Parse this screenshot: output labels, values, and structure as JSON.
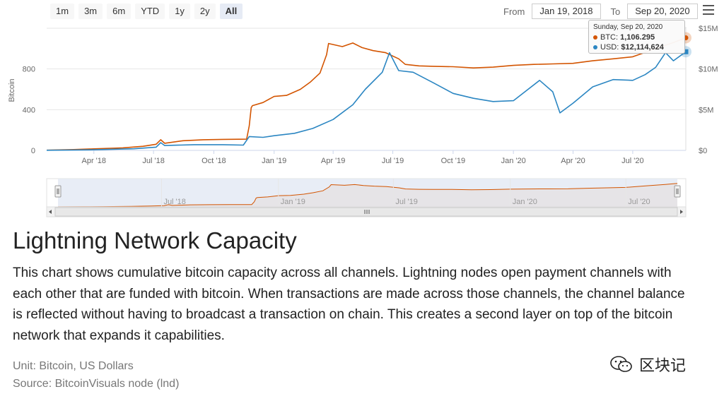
{
  "toolbar": {
    "ranges": [
      "1m",
      "3m",
      "6m",
      "YTD",
      "1y",
      "2y",
      "All"
    ],
    "active_range": "All",
    "from_label": "From",
    "from_value": "Jan 19, 2018",
    "to_label": "To",
    "to_value": "Sep 20, 2020"
  },
  "tooltip": {
    "date": "Sunday, Sep 20, 2020",
    "btc_label": "BTC:",
    "btc_value": "1,106.295",
    "usd_label": "USD:",
    "usd_value": "$12,114,624"
  },
  "colors": {
    "btc": "#d35400",
    "usd": "#2b86c2",
    "navigator_fill": "#e6ebf5"
  },
  "chart_data": {
    "type": "line",
    "x_ticks": [
      "Apr '18",
      "Jul '18",
      "Oct '18",
      "Jan '19",
      "Apr '19",
      "Jul '19",
      "Oct '19",
      "Jan '20",
      "Apr '20",
      "Jul '20"
    ],
    "y_left": {
      "label": "Bitcoin",
      "ticks": [
        "0",
        "400",
        "800"
      ],
      "range": [
        0,
        1200
      ]
    },
    "y_right": {
      "ticks": [
        "$0",
        "$5M",
        "$10M",
        "$15M"
      ],
      "range": [
        0,
        15000000
      ]
    },
    "series": [
      {
        "name": "BTC",
        "axis": "left",
        "color": "#d35400",
        "points": [
          [
            "2018-01-19",
            2
          ],
          [
            "2018-03-01",
            8
          ],
          [
            "2018-04-01",
            15
          ],
          [
            "2018-05-15",
            25
          ],
          [
            "2018-06-15",
            40
          ],
          [
            "2018-07-05",
            60
          ],
          [
            "2018-07-12",
            105
          ],
          [
            "2018-07-18",
            70
          ],
          [
            "2018-08-15",
            95
          ],
          [
            "2018-09-15",
            105
          ],
          [
            "2018-10-15",
            108
          ],
          [
            "2018-11-20",
            110
          ],
          [
            "2018-11-24",
            240
          ],
          [
            "2018-11-27",
            420
          ],
          [
            "2018-11-29",
            440
          ],
          [
            "2018-12-15",
            470
          ],
          [
            "2019-01-01",
            530
          ],
          [
            "2019-01-20",
            540
          ],
          [
            "2019-02-10",
            600
          ],
          [
            "2019-02-25",
            670
          ],
          [
            "2019-03-12",
            760
          ],
          [
            "2019-03-22",
            940
          ],
          [
            "2019-03-25",
            1050
          ],
          [
            "2019-04-15",
            1020
          ],
          [
            "2019-05-01",
            1055
          ],
          [
            "2019-05-15",
            1010
          ],
          [
            "2019-06-01",
            980
          ],
          [
            "2019-06-20",
            960
          ],
          [
            "2019-07-10",
            900
          ],
          [
            "2019-07-20",
            845
          ],
          [
            "2019-08-10",
            830
          ],
          [
            "2019-09-01",
            826
          ],
          [
            "2019-10-01",
            822
          ],
          [
            "2019-11-01",
            810
          ],
          [
            "2019-12-01",
            818
          ],
          [
            "2020-01-01",
            835
          ],
          [
            "2020-02-01",
            845
          ],
          [
            "2020-03-01",
            850
          ],
          [
            "2020-04-01",
            855
          ],
          [
            "2020-05-01",
            880
          ],
          [
            "2020-06-01",
            900
          ],
          [
            "2020-07-01",
            920
          ],
          [
            "2020-08-01",
            990
          ],
          [
            "2020-09-01",
            1060
          ],
          [
            "2020-09-20",
            1106.295
          ]
        ]
      },
      {
        "name": "USD",
        "axis": "right",
        "color": "#2b86c2",
        "points": [
          [
            "2018-01-19",
            20000
          ],
          [
            "2018-04-01",
            80000
          ],
          [
            "2018-06-01",
            200000
          ],
          [
            "2018-07-05",
            400000
          ],
          [
            "2018-07-12",
            950000
          ],
          [
            "2018-07-18",
            600000
          ],
          [
            "2018-09-01",
            700000
          ],
          [
            "2018-10-15",
            700000
          ],
          [
            "2018-11-15",
            650000
          ],
          [
            "2018-11-24",
            1700000
          ],
          [
            "2018-12-15",
            1600000
          ],
          [
            "2019-01-01",
            1800000
          ],
          [
            "2019-02-01",
            2100000
          ],
          [
            "2019-03-01",
            2700000
          ],
          [
            "2019-04-01",
            3800000
          ],
          [
            "2019-05-01",
            5600000
          ],
          [
            "2019-05-20",
            7500000
          ],
          [
            "2019-06-15",
            9600000
          ],
          [
            "2019-06-26",
            12000000
          ],
          [
            "2019-07-10",
            9800000
          ],
          [
            "2019-08-01",
            9600000
          ],
          [
            "2019-09-01",
            8300000
          ],
          [
            "2019-10-01",
            7000000
          ],
          [
            "2019-11-01",
            6400000
          ],
          [
            "2019-12-01",
            6000000
          ],
          [
            "2020-01-01",
            6100000
          ],
          [
            "2020-02-10",
            8600000
          ],
          [
            "2020-03-01",
            7200000
          ],
          [
            "2020-03-12",
            4600000
          ],
          [
            "2020-04-01",
            5800000
          ],
          [
            "2020-05-01",
            7800000
          ],
          [
            "2020-06-01",
            8700000
          ],
          [
            "2020-07-01",
            8600000
          ],
          [
            "2020-07-20",
            9300000
          ],
          [
            "2020-08-05",
            10200000
          ],
          [
            "2020-08-20",
            12000000
          ],
          [
            "2020-09-01",
            11000000
          ],
          [
            "2020-09-20",
            12114624
          ]
        ]
      }
    ],
    "navigator": {
      "ticks": [
        "Jul '18",
        "Jan '19",
        "Jul '19",
        "Jan '20",
        "Jul '20"
      ]
    }
  },
  "article": {
    "title": "Lightning Network Capacity",
    "description": "This chart shows cumulative bitcoin capacity across all channels. Lightning nodes open payment channels with each other that are funded with bitcoin. When transactions are made across those channels, the channel balance is reflected without having to broadcast a transaction on chain. This creates a second layer on top of the bitcoin network that expands it capabilities.",
    "unit": "Unit:  Bitcoin, US Dollars",
    "source": "Source:  BitcoinVisuals node (lnd)"
  },
  "watermark": {
    "text": "区块记",
    "icon": "wechat-icon"
  }
}
